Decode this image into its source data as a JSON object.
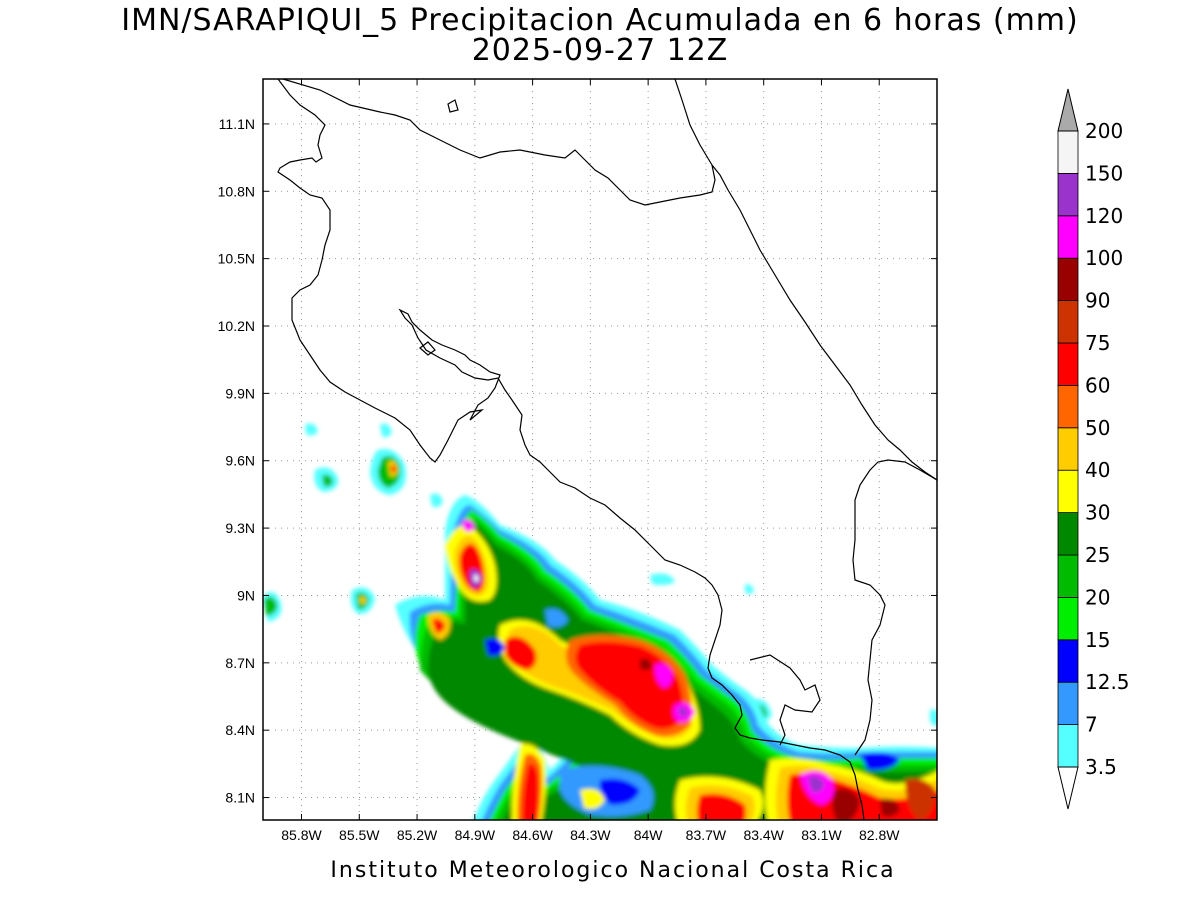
{
  "title": {
    "line1": "IMN/SARAPIQUI_5 Precipitacion Acumulada en 6 horas (mm)",
    "line2": "2025-09-27 12Z"
  },
  "footer": "Instituto Meteorologico Nacional Costa Rica",
  "map": {
    "lon_range": [
      -86.0,
      -82.5
    ],
    "lat_range": [
      8.0,
      11.3
    ],
    "x_ticks": [
      "85.8W",
      "85.5W",
      "85.2W",
      "84.9W",
      "84.6W",
      "84.3W",
      "84W",
      "83.7W",
      "83.4W",
      "83.1W",
      "82.8W"
    ],
    "x_tick_values": [
      -85.8,
      -85.5,
      -85.2,
      -84.9,
      -84.6,
      -84.3,
      -84.0,
      -83.7,
      -83.4,
      -83.1,
      -82.8
    ],
    "y_ticks": [
      "11.1N",
      "10.8N",
      "10.5N",
      "10.2N",
      "9.9N",
      "9.6N",
      "9.3N",
      "9N",
      "8.7N",
      "8.4N",
      "8.1N"
    ],
    "y_tick_values": [
      11.1,
      10.8,
      10.5,
      10.2,
      9.9,
      9.6,
      9.3,
      9.0,
      8.7,
      8.4,
      8.1
    ],
    "grid": "dotted"
  },
  "colorbar": {
    "levels": [
      "3.5",
      "7",
      "12.5",
      "15",
      "20",
      "25",
      "30",
      "40",
      "50",
      "60",
      "75",
      "90",
      "100",
      "120",
      "150",
      "200"
    ],
    "colors": [
      "#ffffff",
      "#55ffff",
      "#3399ff",
      "#0000ff",
      "#00ee00",
      "#00bb00",
      "#008800",
      "#ffff00",
      "#ffcc00",
      "#ff6600",
      "#ff0000",
      "#cc3300",
      "#990000",
      "#ff00ff",
      "#9933cc",
      "#f5f5f5",
      "#aaaaaa"
    ],
    "extend": "both"
  }
}
